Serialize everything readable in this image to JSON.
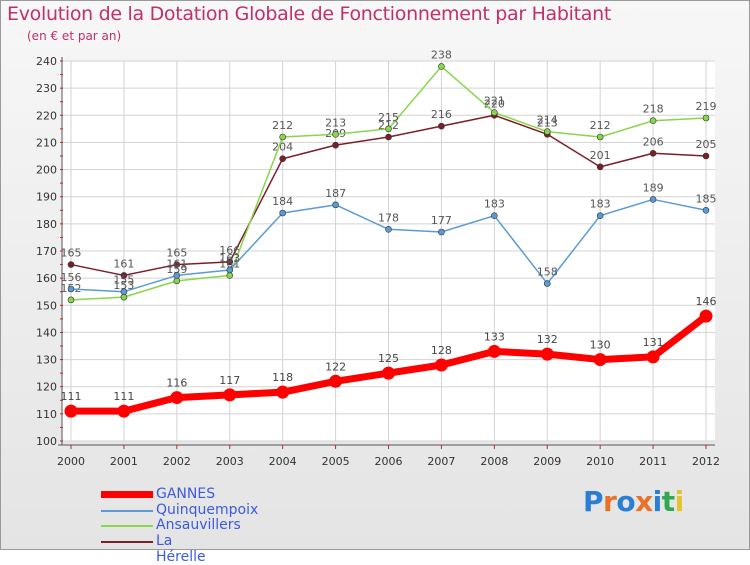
{
  "header": {
    "title": "Evolution de la Dotation Globale de Fonctionnement par Habitant",
    "subtitle": "(en € et par an)"
  },
  "logo": {
    "text": "Proxiti",
    "colors": [
      "#2a7fd4",
      "#e8722a",
      "#2a7fd4",
      "#e8722a",
      "#2a7fd4",
      "#2fa84f",
      "#e8c22a"
    ]
  },
  "chart_data": {
    "type": "line",
    "x": [
      2000,
      2001,
      2002,
      2003,
      2004,
      2005,
      2006,
      2007,
      2008,
      2009,
      2010,
      2011,
      2012
    ],
    "ylim": [
      100,
      240
    ],
    "yticks": [
      100,
      110,
      120,
      130,
      140,
      150,
      160,
      170,
      180,
      190,
      200,
      210,
      220,
      230,
      240
    ],
    "grid": true,
    "legend_position": "bottom-left",
    "series": [
      {
        "name": "La Hérelle",
        "color": "#7a1f2a",
        "width": 1.5,
        "values": [
          165,
          161,
          165,
          166,
          204,
          209,
          212,
          216,
          220,
          213,
          201,
          206,
          205
        ]
      },
      {
        "name": "Ansauvillers",
        "color": "#88d64a",
        "width": 1.5,
        "values": [
          152,
          153,
          159,
          161,
          212,
          213,
          215,
          238,
          221,
          214,
          212,
          218,
          219
        ]
      },
      {
        "name": "Quinquempoix",
        "color": "#5a9bd5",
        "width": 1.5,
        "values": [
          156,
          155,
          161,
          163,
          184,
          187,
          178,
          177,
          183,
          158,
          183,
          189,
          185
        ]
      },
      {
        "name": "GANNES",
        "color": "#ff0000",
        "width": 7,
        "values": [
          111,
          111,
          116,
          117,
          118,
          122,
          125,
          128,
          133,
          132,
          130,
          131,
          146
        ]
      }
    ],
    "legend_order": [
      "GANNES",
      "Quinquempoix",
      "Ansauvillers",
      "La Hérelle"
    ]
  }
}
